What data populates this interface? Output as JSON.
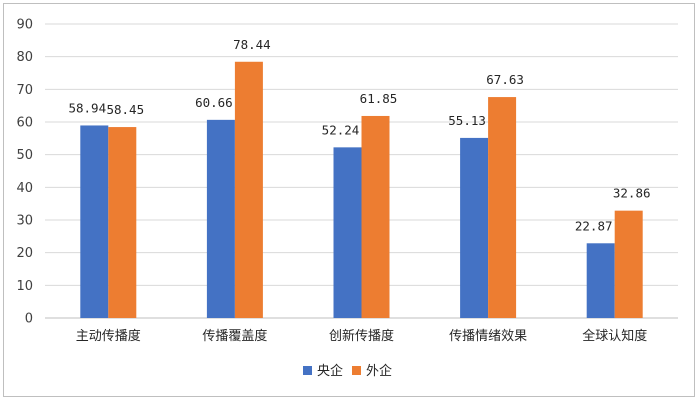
{
  "chart_data": {
    "type": "bar",
    "categories": [
      "主动传播度",
      "传播覆盖度",
      "创新传播度",
      "传播情绪效果",
      "全球认知度"
    ],
    "series": [
      {
        "name": "央企",
        "values": [
          58.94,
          60.66,
          52.24,
          55.13,
          22.87
        ],
        "color": "#4472c4"
      },
      {
        "name": "外企",
        "values": [
          58.45,
          78.44,
          61.85,
          67.63,
          32.86
        ],
        "color": "#ed7d31"
      }
    ],
    "ylim": [
      0,
      90
    ],
    "yticks": [
      0,
      10,
      20,
      30,
      40,
      50,
      60,
      70,
      80,
      90
    ],
    "grid": true,
    "legend": "bottom-center",
    "data_labels": true,
    "title": "",
    "xlabel": "",
    "ylabel": ""
  }
}
